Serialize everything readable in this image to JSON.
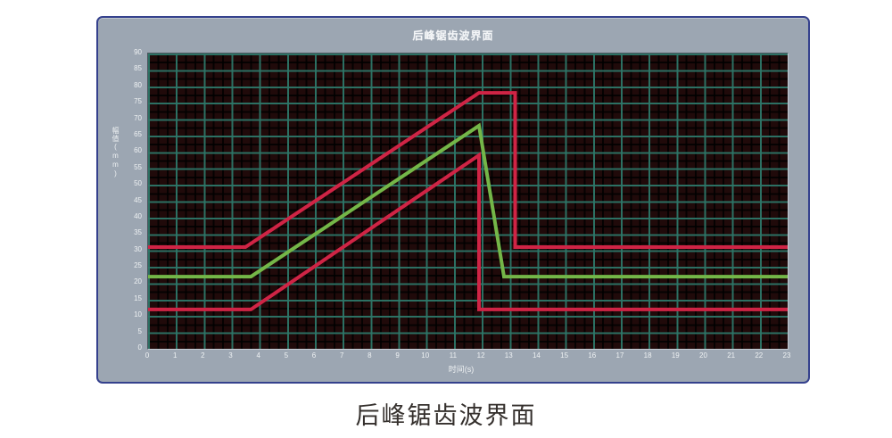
{
  "window": {
    "title": "后峰锯齿波界面"
  },
  "caption": "后峰锯齿波界面",
  "colors": {
    "panel_bg": "#9ca6b2",
    "panel_border": "#35418d",
    "plot_bg": "#200a0a",
    "grid_major": "#2e7668",
    "limit_line": "#cf2445",
    "setpoint_line": "#74b648",
    "tick_text": "#eef1f3"
  },
  "chart_data": {
    "type": "line",
    "title": "后峰锯齿波界面",
    "xlabel": "时间(s)",
    "ylabel": "幅值(mm)",
    "xlim": [
      0,
      23
    ],
    "ylim": [
      0,
      90
    ],
    "grid": "on",
    "legend": "none",
    "x_ticks": [
      "0",
      "1",
      "2",
      "3",
      "4",
      "5",
      "6",
      "7",
      "8",
      "9",
      "10",
      "11",
      "12",
      "13",
      "14",
      "15",
      "16",
      "17",
      "18",
      "19",
      "20",
      "21",
      "22",
      "23"
    ],
    "y_ticks": [
      "90",
      "85",
      "80",
      "75",
      "70",
      "65",
      "60",
      "55",
      "50",
      "45",
      "40",
      "35",
      "30",
      "25",
      "20",
      "15",
      "10",
      "5",
      "0"
    ],
    "series": [
      {
        "name": "upper-limit-sawtooth",
        "color": "#cf2445",
        "points": [
          [
            0,
            31
          ],
          [
            3.5,
            31
          ],
          [
            11.9,
            78
          ],
          [
            13.2,
            78
          ],
          [
            13.2,
            31
          ],
          [
            23,
            31
          ]
        ]
      },
      {
        "name": "lower-limit-sawtooth",
        "color": "#cf2445",
        "points": [
          [
            0,
            12
          ],
          [
            3.7,
            12
          ],
          [
            11.9,
            59
          ],
          [
            11.9,
            12
          ],
          [
            23,
            12
          ]
        ]
      },
      {
        "name": "setpoint-sawtooth",
        "color": "#74b648",
        "points": [
          [
            0,
            22
          ],
          [
            3.7,
            22
          ],
          [
            11.9,
            68
          ],
          [
            12.8,
            22
          ],
          [
            23,
            22
          ]
        ]
      }
    ]
  }
}
